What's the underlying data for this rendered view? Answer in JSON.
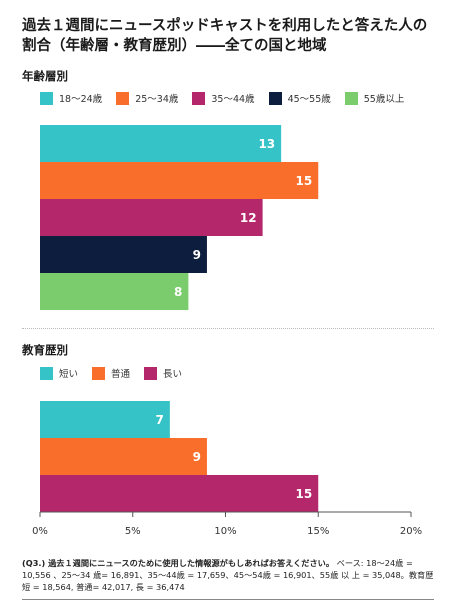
{
  "title": "過去１週間にニュースポッドキャストを利用したと答えた人の割合（年齢層・教育歴別）――全ての国と地域",
  "footnote": {
    "question": "(Q3.) 過去１週間にニュースのために使用した情報源がもしあればお答えください。",
    "base": "ベース: 18～24歳 = 10,556 、25～34 歳= 16,891、35～44歳 = 17,659、45～54歳 = 16,901、55歳 以 上 = 35,048。教育歴短 = 18,564, 普通= 42,017, 長 = 36,474"
  },
  "chart_data": [
    {
      "type": "bar",
      "orientation": "horizontal",
      "section_label": "年齢層別",
      "xlim": [
        0,
        20
      ],
      "ticks": [
        "0%",
        "5%",
        "10%",
        "15%",
        "20%"
      ],
      "series": [
        {
          "name": "18～24歳",
          "value": 13,
          "color": "#35c3c7"
        },
        {
          "name": "25～34歳",
          "value": 15,
          "color": "#fa6e2b"
        },
        {
          "name": "35～44歳",
          "value": 12,
          "color": "#b5276b"
        },
        {
          "name": "45～55歳",
          "value": 9,
          "color": "#0c1d3d"
        },
        {
          "name": "55歳以上",
          "value": 8,
          "color": "#7acc6c"
        }
      ]
    },
    {
      "type": "bar",
      "orientation": "horizontal",
      "section_label": "教育歴別",
      "xlim": [
        0,
        20
      ],
      "ticks": [
        "0%",
        "5%",
        "10%",
        "15%",
        "20%"
      ],
      "series": [
        {
          "name": "短い",
          "value": 7,
          "color": "#35c3c7"
        },
        {
          "name": "普通",
          "value": 9,
          "color": "#fa6e2b"
        },
        {
          "name": "長い",
          "value": 15,
          "color": "#b5276b"
        }
      ]
    }
  ]
}
